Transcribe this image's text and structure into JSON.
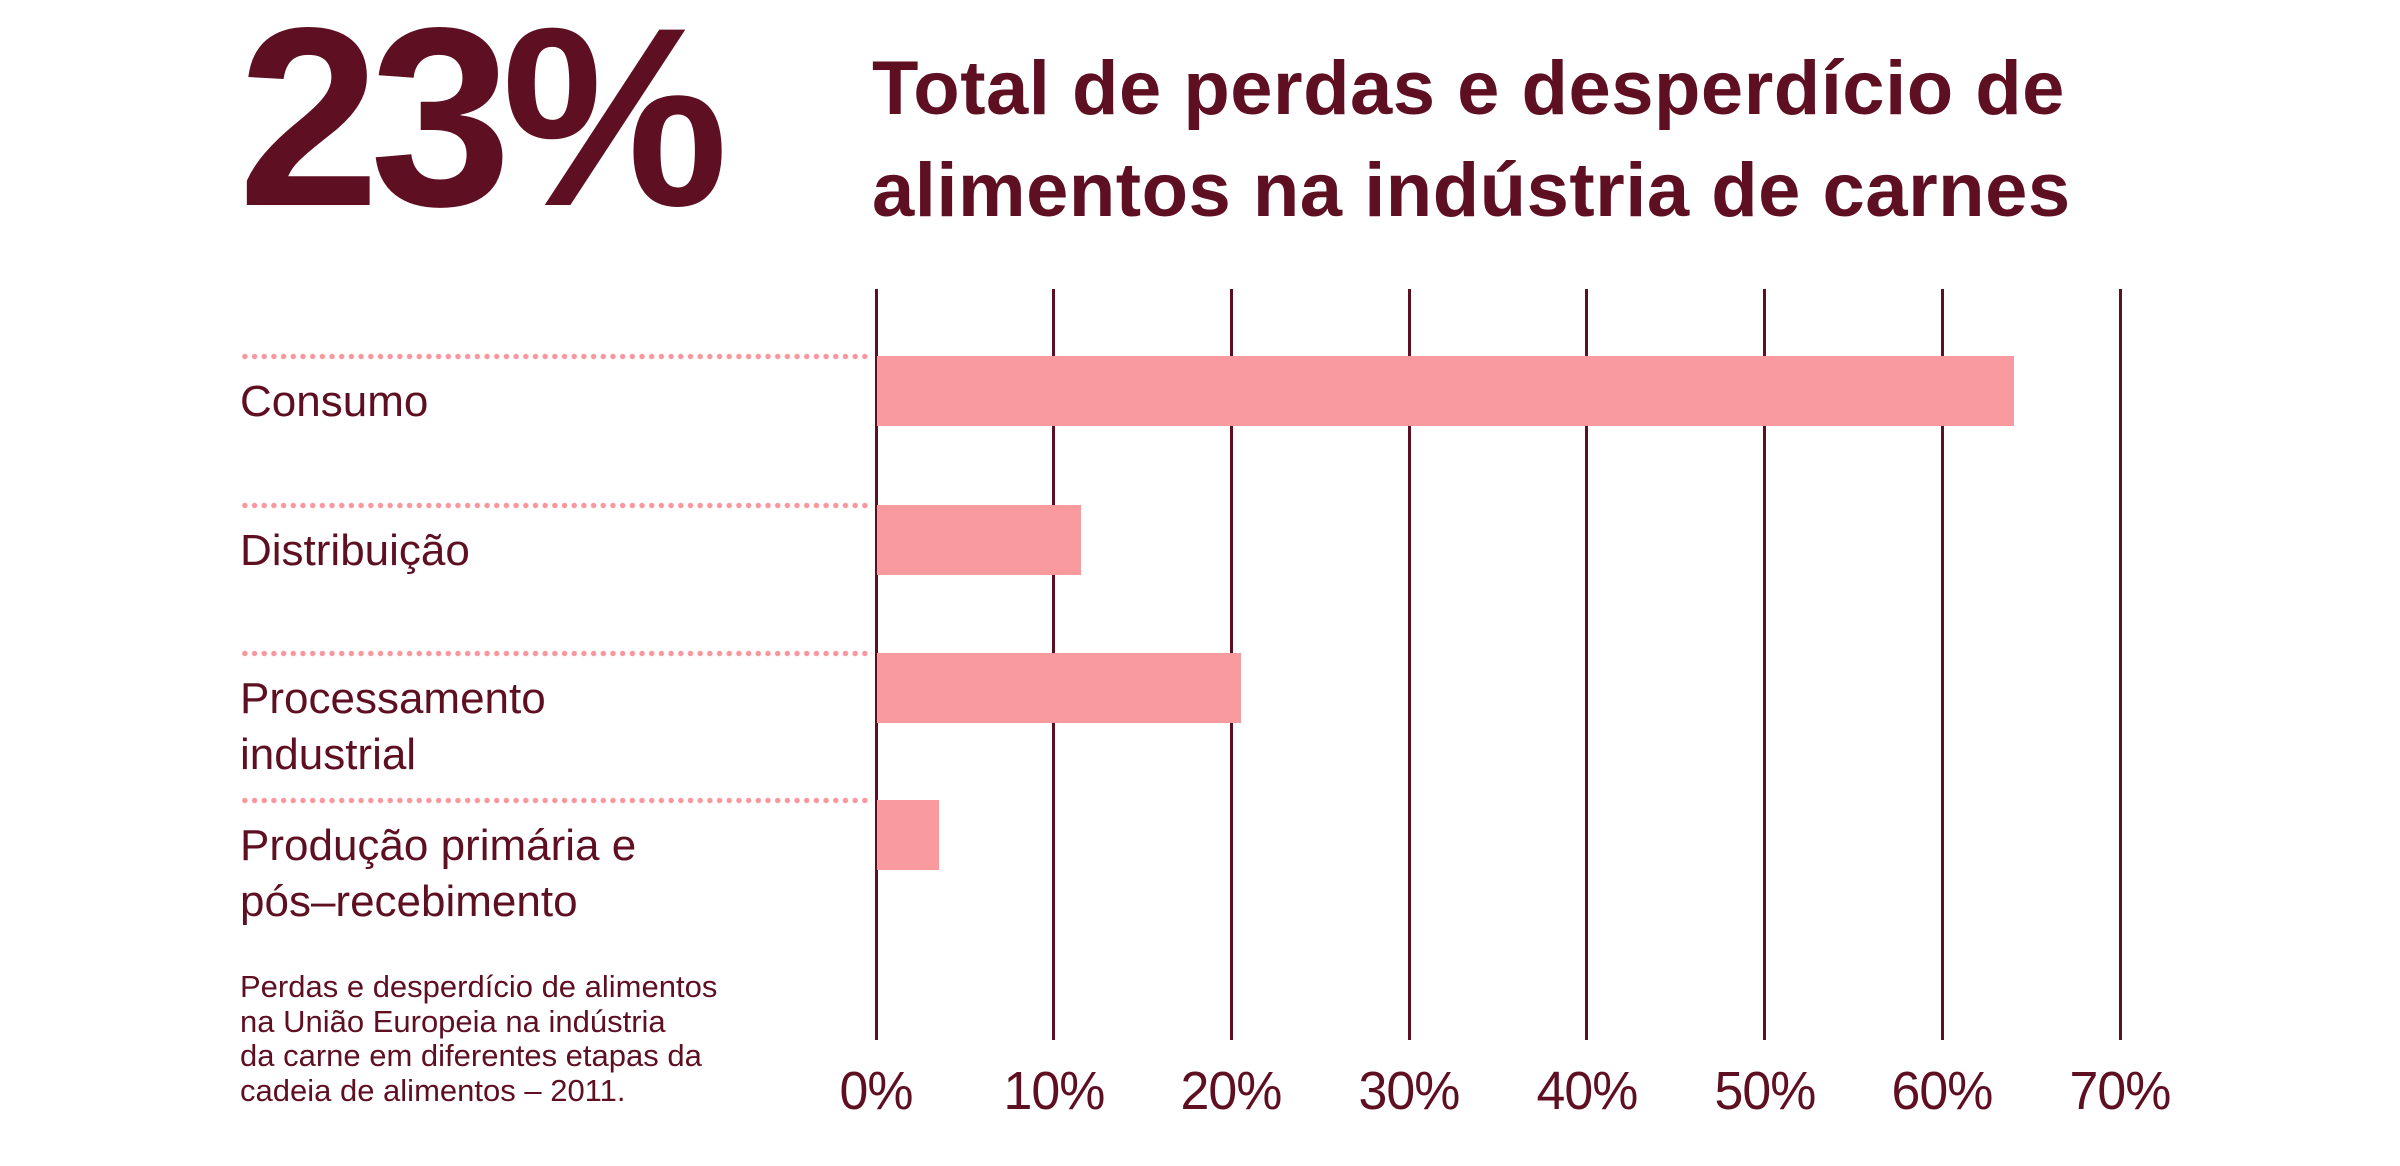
{
  "stat": {
    "value": "23%"
  },
  "title": {
    "lines": [
      "Total de perdas e desperdício de",
      "alimentos na indústria de carnes"
    ]
  },
  "chart_data": {
    "type": "bar",
    "orientation": "horizontal",
    "title": "Total de perdas e desperdício de alimentos na indústria de carnes",
    "categories": [
      "Consumo",
      "Distribuição",
      "Processamento\nindustrial",
      "Produção primária e\npós–recebimento"
    ],
    "values": [
      64,
      11.5,
      20.5,
      3.5
    ],
    "unit": "%",
    "xlabel": "",
    "ylabel": "",
    "x_axis": {
      "min": 0,
      "max": 70,
      "tick_step": 10,
      "tick_labels": [
        "0%",
        "10%",
        "20%",
        "30%",
        "40%",
        "50%",
        "60%",
        "70%"
      ]
    },
    "grid": "vertical-on",
    "legend": "none",
    "bar_color": "#F99A9E",
    "axis_color": "#5E0F21"
  },
  "footnote": {
    "text": "Perdas e desperdício de alimentos\nna União Europeia na indústria\nda carne em diferentes etapas da\ncadeia de alimentos – 2011."
  },
  "colors": {
    "text_maroon": "#5E0F21",
    "bar_pink": "#F99A9E",
    "dot_pink": "#F8989E",
    "background": "#FFFFFF"
  }
}
